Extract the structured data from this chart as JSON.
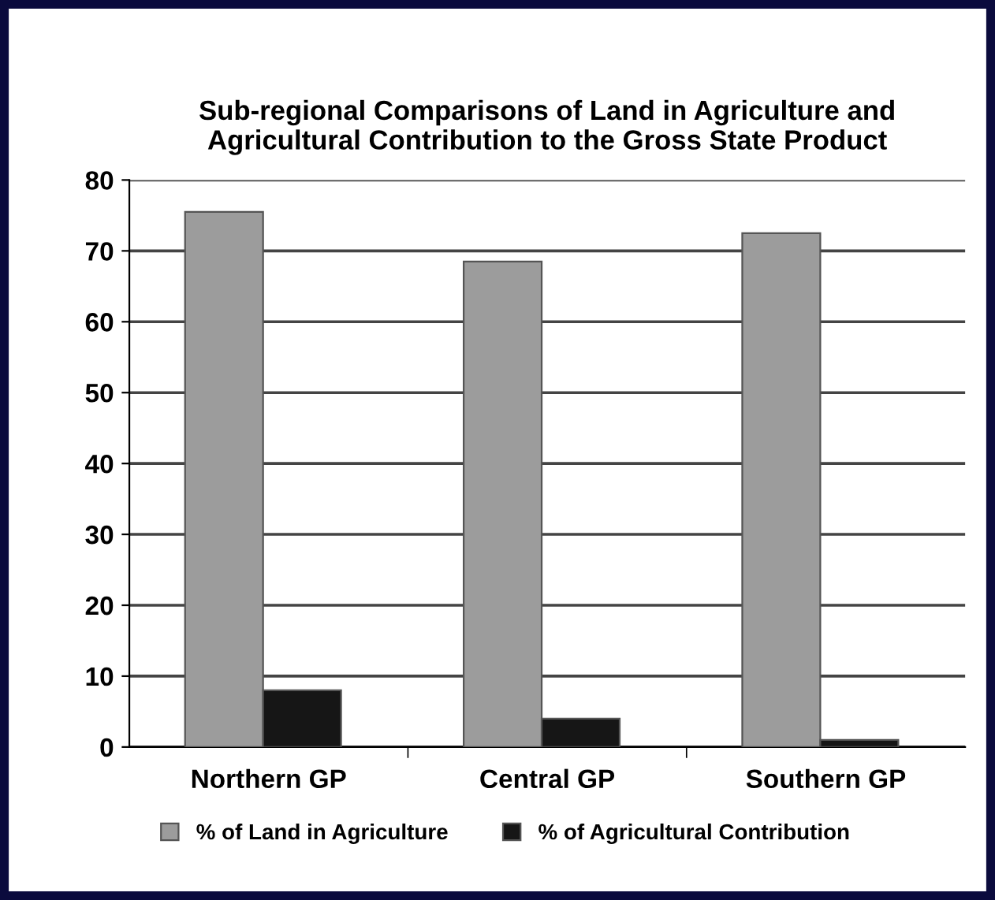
{
  "chart_data": {
    "type": "bar",
    "title": "Sub-regional Comparisons of Land in Agriculture and\nAgricultural Contribution to the Gross State Product",
    "categories": [
      "Northern GP",
      "Central GP",
      "Southern GP"
    ],
    "series": [
      {
        "name": "% of Land in Agriculture",
        "color": "#9c9c9c",
        "values": [
          75.5,
          68.5,
          72.5
        ]
      },
      {
        "name": "% of Agricultural Contribution",
        "color": "#161616",
        "values": [
          8,
          4,
          1
        ]
      }
    ],
    "ylim": [
      0,
      80
    ],
    "yticks": [
      0,
      10,
      20,
      30,
      40,
      50,
      60,
      70,
      80
    ],
    "grid": "y",
    "legend": "bottom"
  }
}
